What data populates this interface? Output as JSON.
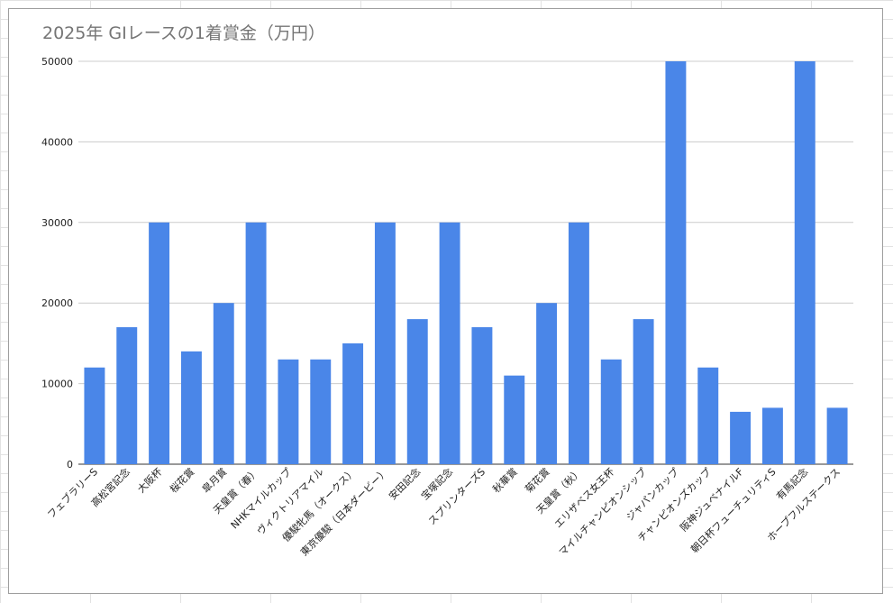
{
  "chart_data": {
    "type": "bar",
    "title": "2025年 GIレースの1着賞金（万円）",
    "xlabel": "",
    "ylabel": "",
    "ylim": [
      0,
      50000
    ],
    "yticks": [
      0,
      10000,
      20000,
      30000,
      40000,
      50000
    ],
    "grid": true,
    "legend": "none",
    "bar_color": "#4a86e8",
    "categories": [
      "フェブラリーS",
      "高松宮記念",
      "大阪杯",
      "桜花賞",
      "皐月賞",
      "天皇賞（春）",
      "NHKマイルカップ",
      "ヴィクトリアマイル",
      "優駿牝馬（オークス）",
      "東京優駿（日本ダービー）",
      "安田記念",
      "宝塚記念",
      "スプリンターズS",
      "秋華賞",
      "菊花賞",
      "天皇賞（秋）",
      "エリザベス女王杯",
      "マイルチャンピオンシップ",
      "ジャパンカップ",
      "チャンピオンズカップ",
      "阪神ジュベナイルF",
      "朝日杯フューチュリティS",
      "有馬記念",
      "ホープフルステークス"
    ],
    "values": [
      12000,
      17000,
      30000,
      14000,
      20000,
      30000,
      13000,
      13000,
      15000,
      30000,
      18000,
      30000,
      17000,
      11000,
      20000,
      30000,
      13000,
      18000,
      50000,
      12000,
      6500,
      7000,
      50000,
      7000
    ]
  }
}
